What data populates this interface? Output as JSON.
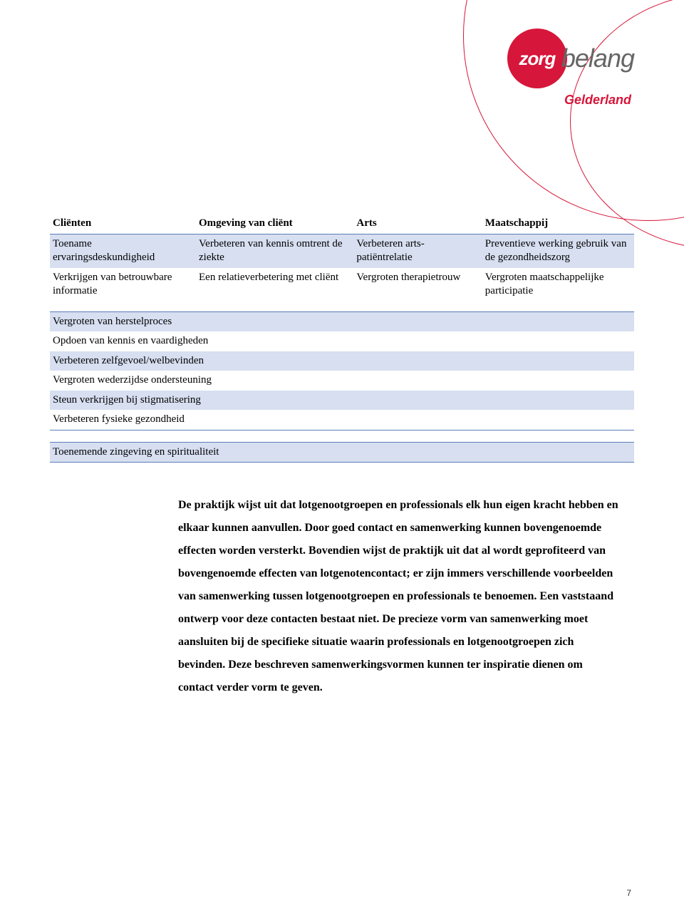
{
  "logo": {
    "zorg": "zorg",
    "belang": "belang",
    "sub": "Gelderland"
  },
  "table": {
    "headers": [
      "Cliënten",
      "Omgeving van cliënt",
      "Arts",
      "Maatschappij"
    ],
    "rows": [
      [
        "Toename ervaringsdeskundigheid",
        "Verbeteren van kennis omtrent de ziekte",
        "Verbeteren arts-patiëntrelatie",
        "Preventieve werking gebruik van de gezondheidszorg"
      ],
      [
        "Verkrijgen van betrouwbare informatie",
        "Een relatieverbetering met cliënt",
        "Vergroten therapietrouw",
        "Vergroten maatschappelijke participatie"
      ]
    ]
  },
  "list_a": [
    "Vergroten van herstelproces",
    "Opdoen van kennis en vaardigheden",
    "Verbeteren zelfgevoel/welbevinden",
    "Vergroten wederzijdse ondersteuning",
    "Steun verkrijgen bij stigmatisering",
    "Verbeteren fysieke gezondheid"
  ],
  "list_b": [
    "Toenemende zingeving en spiritualiteit"
  ],
  "paragraph": "De praktijk wijst uit dat lotgenootgroepen en professionals elk hun eigen kracht hebben en elkaar kunnen aanvullen. Door goed contact en samenwerking kunnen bovengenoemde effecten worden versterkt. Bovendien wijst de praktijk uit dat al wordt geprofiteerd van bovengenoemde effecten van lotgenotencontact; er zijn immers verschillende voorbeelden van samenwerking tussen lotgenootgroepen en professionals te benoemen. Een vaststaand ontwerp voor deze contacten bestaat niet. De precieze vorm van samenwerking moet aansluiten bij de specifieke situatie waarin professionals en lotgenootgroepen zich bevinden. Deze beschreven samenwerkingsvormen kunnen ter inspiratie dienen om contact verder vorm te geven.",
  "page_number": "7",
  "colors": {
    "brand_red": "#d6163a",
    "band_blue": "#d7dff1",
    "rule_blue": "#5a7db8"
  }
}
